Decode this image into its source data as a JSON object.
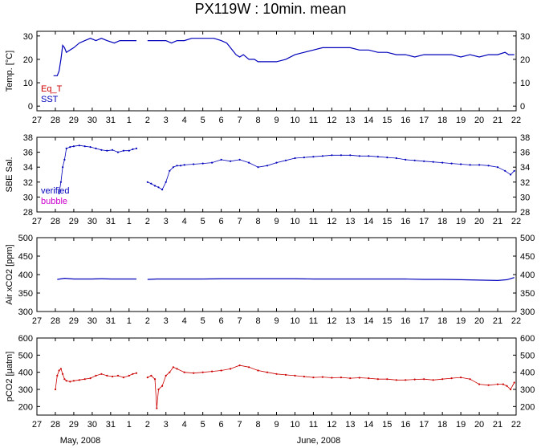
{
  "title": "PX119W : 10min. mean",
  "x_month_labels": [
    "May, 2008",
    "June, 2008"
  ],
  "chart_data": [
    {
      "type": "line",
      "ylabel": "Temp. [°C]",
      "ylim": [
        -2,
        32
      ],
      "yticks": [
        0,
        10,
        20,
        30
      ],
      "xlim": [
        27,
        53
      ],
      "grid": false,
      "legend_placement": "bottom-left inside",
      "x_tick_labels": [
        "27",
        "28",
        "29",
        "30",
        "31",
        "1",
        "2",
        "3",
        "4",
        "5",
        "6",
        "7",
        "8",
        "9",
        "10",
        "11",
        "12",
        "13",
        "14",
        "15",
        "16",
        "17",
        "18",
        "19",
        "20",
        "21",
        "22"
      ],
      "series": [
        {
          "name": "Eq_T",
          "color": "#cc0000",
          "x": [],
          "y": []
        },
        {
          "name": "SST",
          "color": "#0000bb",
          "segments": [
            {
              "x": [
                27.9,
                28.0,
                28.1,
                28.2,
                28.3,
                28.4,
                28.5,
                28.6,
                28.8,
                29.0,
                29.3,
                29.6,
                29.9,
                30.2,
                30.5,
                30.8,
                31.2,
                31.5,
                31.7,
                32.0,
                32.2,
                32.4
              ],
              "y": [
                13,
                13,
                13,
                15,
                20,
                26,
                25,
                23,
                24,
                25,
                27,
                28,
                29,
                28,
                29,
                28,
                27,
                28,
                28,
                28,
                28,
                28
              ]
            },
            {
              "x": [
                33.0,
                33.3,
                33.6,
                34.0,
                34.3,
                34.6,
                35.0,
                35.4,
                35.8,
                36.2,
                36.6,
                37.0,
                37.3,
                37.6,
                37.8,
                38.0,
                38.2,
                38.5,
                38.8,
                39.0,
                39.3,
                39.6,
                40.0,
                40.5,
                41.0,
                41.5,
                42.0,
                42.5,
                43.0,
                43.5,
                44.0,
                44.5,
                45.0,
                45.5,
                46.0,
                46.5,
                47.0,
                47.5,
                48.0,
                48.5,
                49.0,
                49.5,
                50.0,
                50.5,
                51.0,
                51.5,
                52.0,
                52.4,
                52.6,
                52.9
              ],
              "y": [
                28,
                28,
                28,
                28,
                27,
                28,
                28,
                29,
                29,
                29,
                29,
                28,
                27,
                24,
                22,
                21,
                22,
                20,
                20,
                19,
                19,
                19,
                19,
                20,
                22,
                23,
                24,
                25,
                25,
                25,
                25,
                24,
                24,
                23,
                23,
                22,
                22,
                21,
                22,
                22,
                22,
                22,
                21,
                22,
                21,
                22,
                22,
                23,
                22,
                22
              ]
            }
          ]
        }
      ]
    },
    {
      "type": "scatter",
      "ylabel": "SBE Sal.",
      "ylim": [
        28,
        38
      ],
      "yticks": [
        28,
        30,
        32,
        34,
        36,
        38
      ],
      "xlim": [
        27,
        53
      ],
      "grid": false,
      "legend_placement": "bottom-left inside",
      "x_tick_labels": [
        "27",
        "28",
        "29",
        "30",
        "31",
        "1",
        "2",
        "3",
        "4",
        "5",
        "6",
        "7",
        "8",
        "9",
        "10",
        "11",
        "12",
        "13",
        "14",
        "15",
        "16",
        "17",
        "18",
        "19",
        "20",
        "21",
        "22"
      ],
      "series": [
        {
          "name": "verified",
          "color": "#0000bb",
          "segments": [
            {
              "x": [
                28.2,
                28.3,
                28.4,
                28.5,
                28.6,
                28.8,
                29.0,
                29.3,
                29.6,
                29.9,
                30.2,
                30.5,
                30.8,
                31.1,
                31.4,
                31.7,
                32.0,
                32.2,
                32.4
              ],
              "y": [
                30.5,
                32,
                34,
                35,
                36.5,
                36.7,
                36.8,
                36.9,
                36.8,
                36.7,
                36.5,
                36.3,
                36.2,
                36.3,
                36.0,
                36.2,
                36.2,
                36.4,
                36.5
              ]
            },
            {
              "x": [
                33.0,
                33.2,
                33.4,
                33.6,
                33.8,
                34.0,
                34.2,
                34.4,
                34.6,
                34.8,
                35.0,
                35.5,
                36.0,
                36.5,
                37.0,
                37.5,
                38.0,
                38.5,
                39.0,
                39.5,
                40.0,
                40.5,
                41.0,
                41.5,
                42.0,
                42.5,
                43.0,
                43.5,
                44.0,
                44.5,
                45.0,
                45.5,
                46.0,
                46.5,
                47.0,
                47.5,
                48.0,
                48.5,
                49.0,
                49.5,
                50.0,
                50.5,
                51.0,
                51.5,
                52.0,
                52.4,
                52.7,
                52.9
              ],
              "y": [
                32,
                31.8,
                31.5,
                31.3,
                31,
                32,
                33.5,
                34,
                34.2,
                34.2,
                34.3,
                34.4,
                34.5,
                34.6,
                35.0,
                34.8,
                35.0,
                34.6,
                34,
                34.2,
                34.6,
                34.9,
                35.2,
                35.3,
                35.4,
                35.5,
                35.6,
                35.6,
                35.6,
                35.5,
                35.5,
                35.4,
                35.3,
                35.2,
                35.0,
                34.9,
                34.8,
                34.7,
                34.6,
                34.5,
                34.4,
                34.3,
                34.3,
                34.2,
                34.0,
                33.5,
                33.0,
                33.5
              ]
            }
          ]
        },
        {
          "name": "bubble",
          "color": "#cc00cc",
          "x": [],
          "y": []
        }
      ]
    },
    {
      "type": "line",
      "ylabel": "Air xCO2 [ppm]",
      "ylim": [
        300,
        500
      ],
      "yticks": [
        300,
        350,
        400,
        450,
        500
      ],
      "xlim": [
        27,
        53
      ],
      "grid": false,
      "x_tick_labels": [
        "27",
        "28",
        "29",
        "30",
        "31",
        "1",
        "2",
        "3",
        "4",
        "5",
        "6",
        "7",
        "8",
        "9",
        "10",
        "11",
        "12",
        "13",
        "14",
        "15",
        "16",
        "17",
        "18",
        "19",
        "20",
        "21",
        "22"
      ],
      "series": [
        {
          "color": "#0000bb",
          "segments": [
            {
              "x": [
                28.1,
                28.5,
                29.0,
                29.5,
                30.0,
                30.5,
                31.0,
                31.5,
                32.0,
                32.4
              ],
              "y": [
                387,
                390,
                388,
                388,
                388,
                389,
                388,
                388,
                388,
                388
              ]
            },
            {
              "x": [
                33.0,
                33.5,
                34.0,
                35.0,
                36.0,
                37.0,
                38.0,
                39.0,
                40.0,
                41.0,
                42.0,
                43.0,
                44.0,
                45.0,
                46.0,
                47.0,
                48.0,
                49.0,
                50.0,
                51.0,
                52.0,
                52.5,
                52.9
              ],
              "y": [
                387,
                388,
                388,
                388,
                388,
                389,
                389,
                389,
                389,
                389,
                388,
                388,
                388,
                388,
                388,
                388,
                387,
                387,
                386,
                385,
                384,
                386,
                392
              ]
            }
          ]
        }
      ]
    },
    {
      "type": "scatter",
      "ylabel": "pCO2 [μatm]",
      "ylim": [
        150,
        600
      ],
      "yticks": [
        200,
        300,
        400,
        500,
        600
      ],
      "xlim": [
        27,
        53
      ],
      "grid": false,
      "x_tick_labels": [
        "27",
        "28",
        "29",
        "30",
        "31",
        "1",
        "2",
        "3",
        "4",
        "5",
        "6",
        "7",
        "8",
        "9",
        "10",
        "11",
        "12",
        "13",
        "14",
        "15",
        "16",
        "17",
        "18",
        "19",
        "20",
        "21",
        "22"
      ],
      "series": [
        {
          "color": "#cc0000",
          "segments": [
            {
              "x": [
                28.0,
                28.1,
                28.2,
                28.3,
                28.4,
                28.5,
                28.6,
                28.8,
                29.0,
                29.3,
                29.6,
                29.9,
                30.2,
                30.5,
                30.8,
                31.1,
                31.4,
                31.7,
                32.0,
                32.2,
                32.4
              ],
              "y": [
                300,
                380,
                410,
                420,
                390,
                360,
                350,
                345,
                350,
                355,
                360,
                365,
                380,
                390,
                380,
                375,
                380,
                370,
                380,
                390,
                395
              ]
            },
            {
              "x": [
                33.0,
                33.2,
                33.4,
                33.5,
                33.6,
                33.8,
                34.0,
                34.2,
                34.4,
                34.6,
                35.0,
                35.5,
                36.0,
                36.5,
                37.0,
                37.5,
                38.0,
                38.5,
                39.0,
                39.5,
                40.0,
                40.5,
                41.0,
                41.5,
                42.0,
                42.5,
                43.0,
                43.5,
                44.0,
                44.5,
                45.0,
                45.5,
                46.0,
                46.5,
                47.0,
                47.5,
                48.0,
                48.5,
                49.0,
                49.5,
                50.0,
                50.5,
                51.0,
                51.5,
                52.0,
                52.3,
                52.5,
                52.7,
                52.9
              ],
              "y": [
                370,
                380,
                360,
                190,
                300,
                320,
                380,
                400,
                430,
                420,
                400,
                395,
                400,
                405,
                410,
                420,
                440,
                430,
                410,
                400,
                390,
                385,
                380,
                375,
                370,
                372,
                368,
                370,
                365,
                368,
                365,
                360,
                360,
                355,
                355,
                358,
                360,
                355,
                360,
                365,
                370,
                360,
                330,
                325,
                330,
                330,
                320,
                300,
                340
              ]
            }
          ]
        }
      ]
    }
  ]
}
